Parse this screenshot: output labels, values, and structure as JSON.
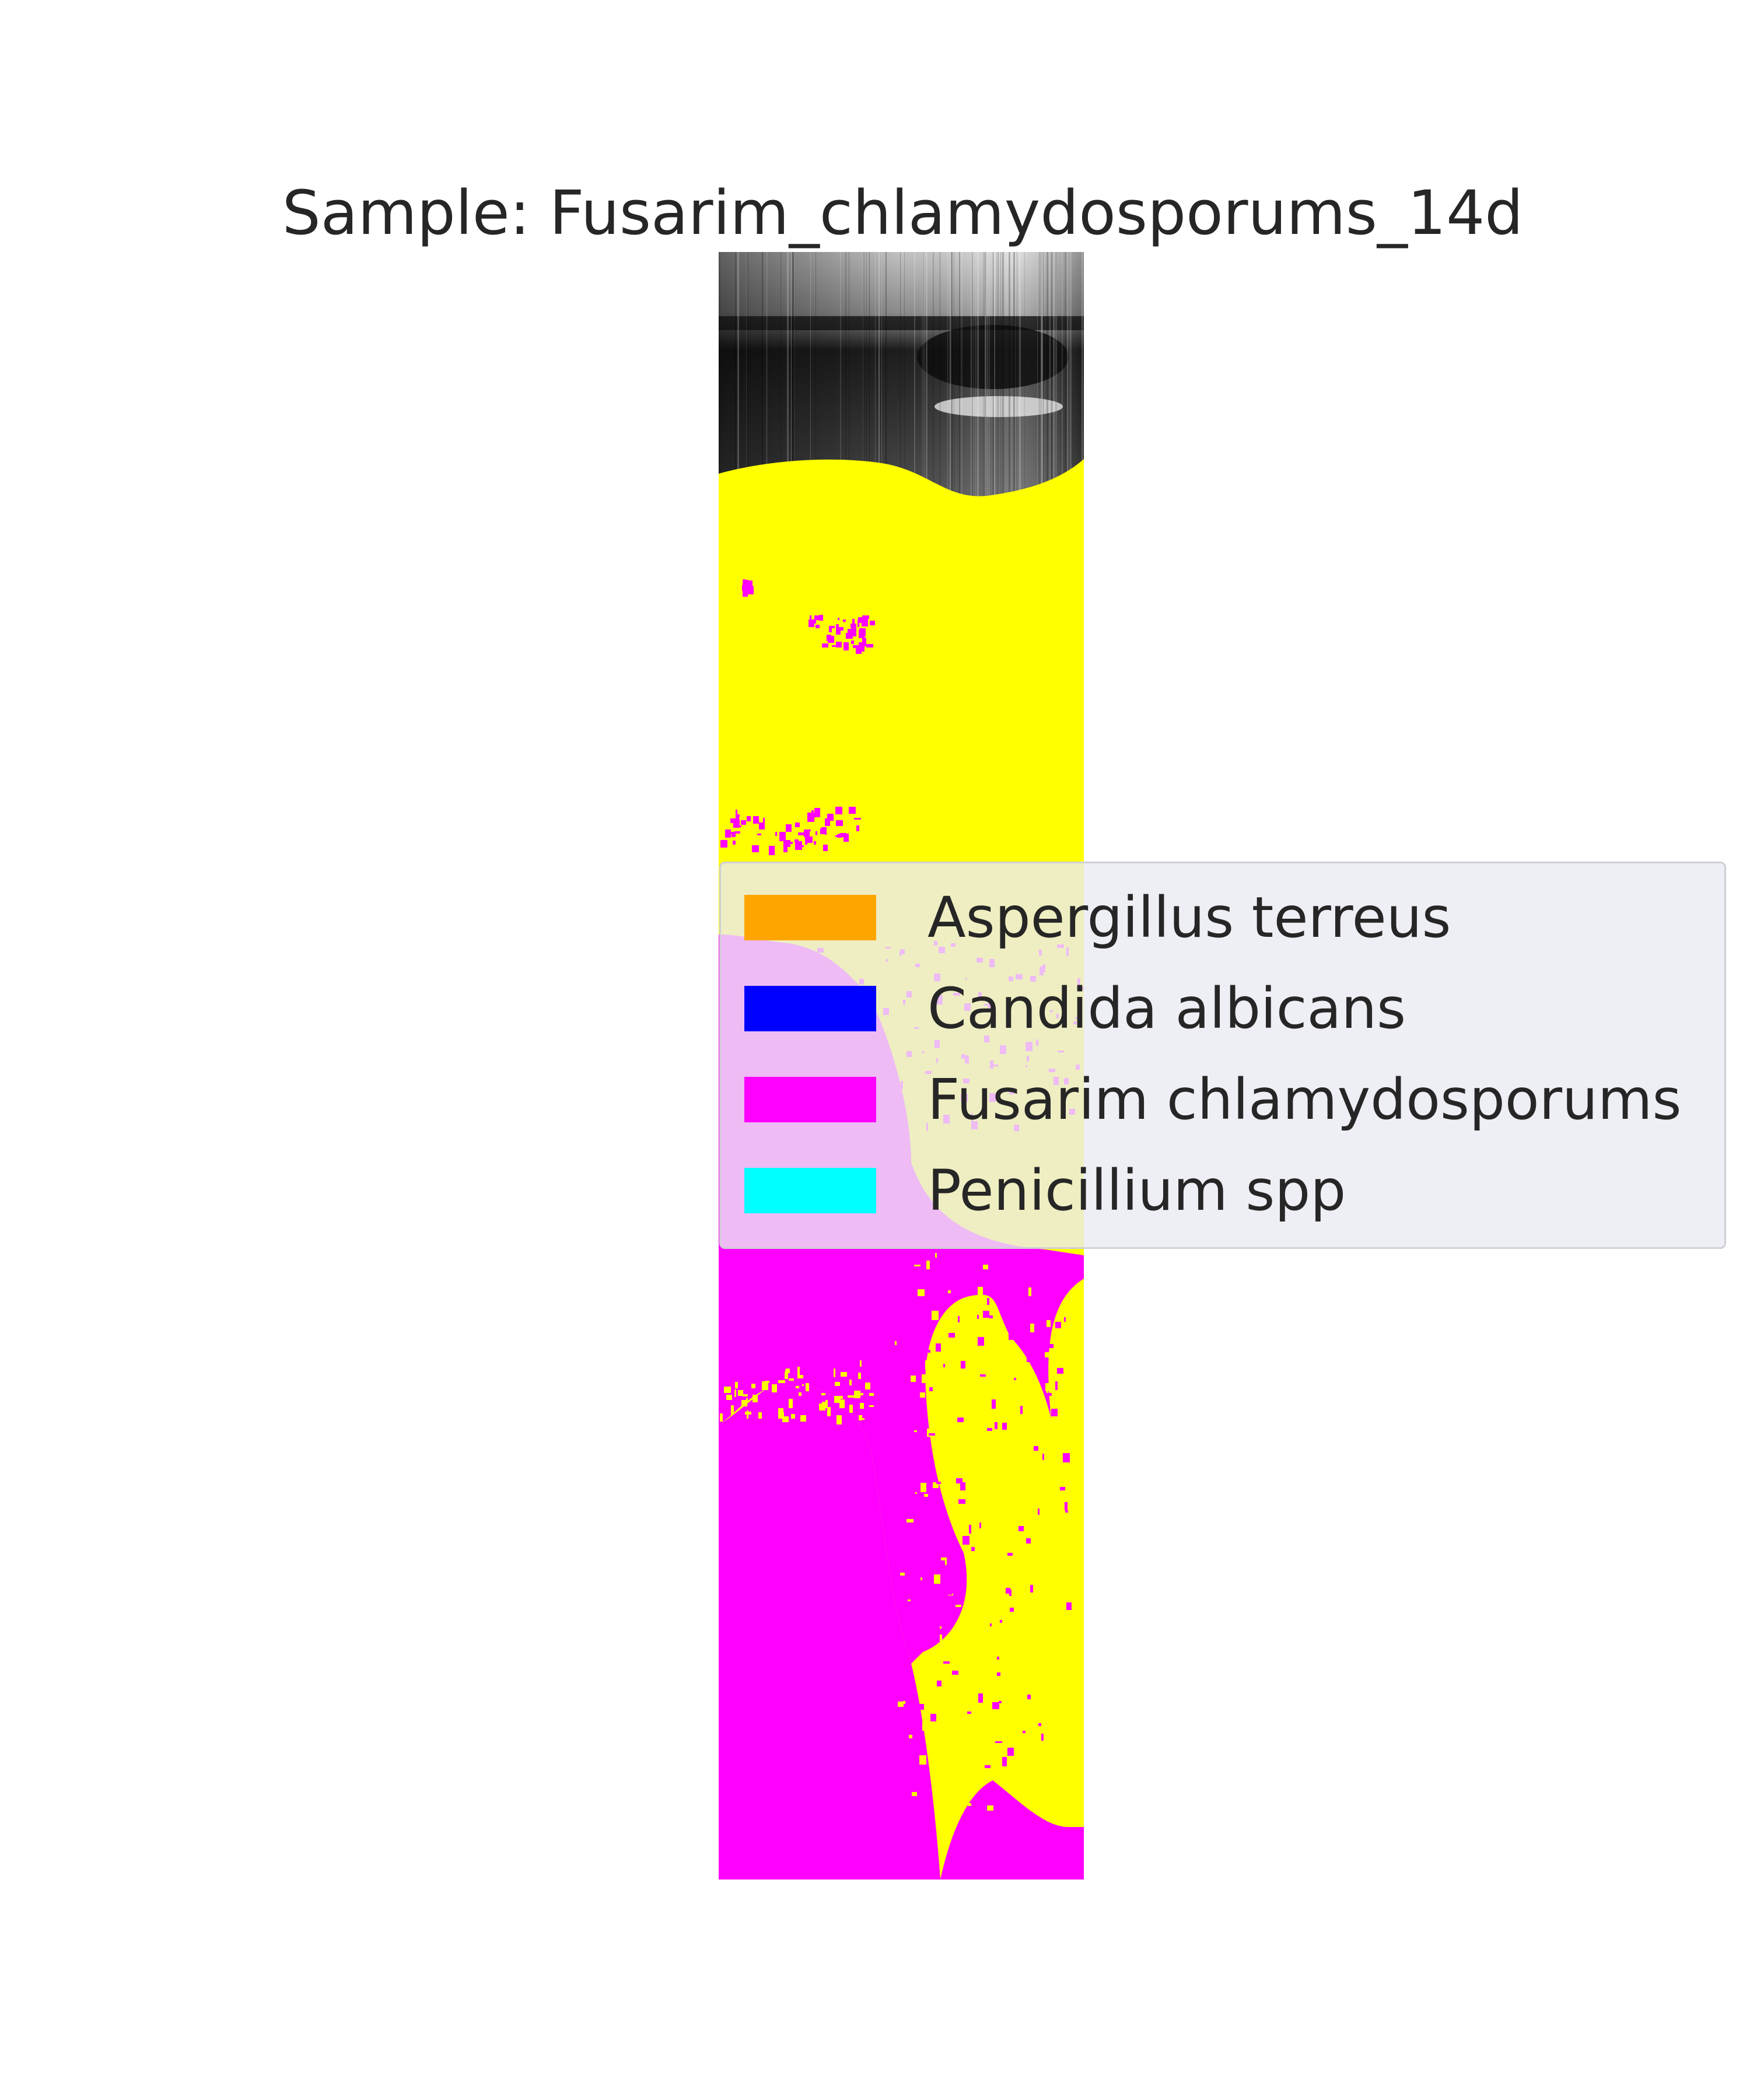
{
  "figure": {
    "title": "Sample: Fusarim_chlamydosporums_14d"
  },
  "legend": {
    "items": [
      {
        "label": "Aspergillus terreus",
        "color": "#ffa500"
      },
      {
        "label": "Candida albicans",
        "color": "#0000ff"
      },
      {
        "label": "Fusarim chlamydosporums",
        "color": "#ff00ff"
      },
      {
        "label": "Penicillium spp",
        "color": "#00ffff"
      }
    ]
  },
  "classification_map": {
    "colors": {
      "yellow_class": "#ffff00",
      "fusarium": "#ff00ff",
      "scan_background_dark": "#1a1a1a",
      "scan_background_light": "#e6e6e6"
    }
  }
}
